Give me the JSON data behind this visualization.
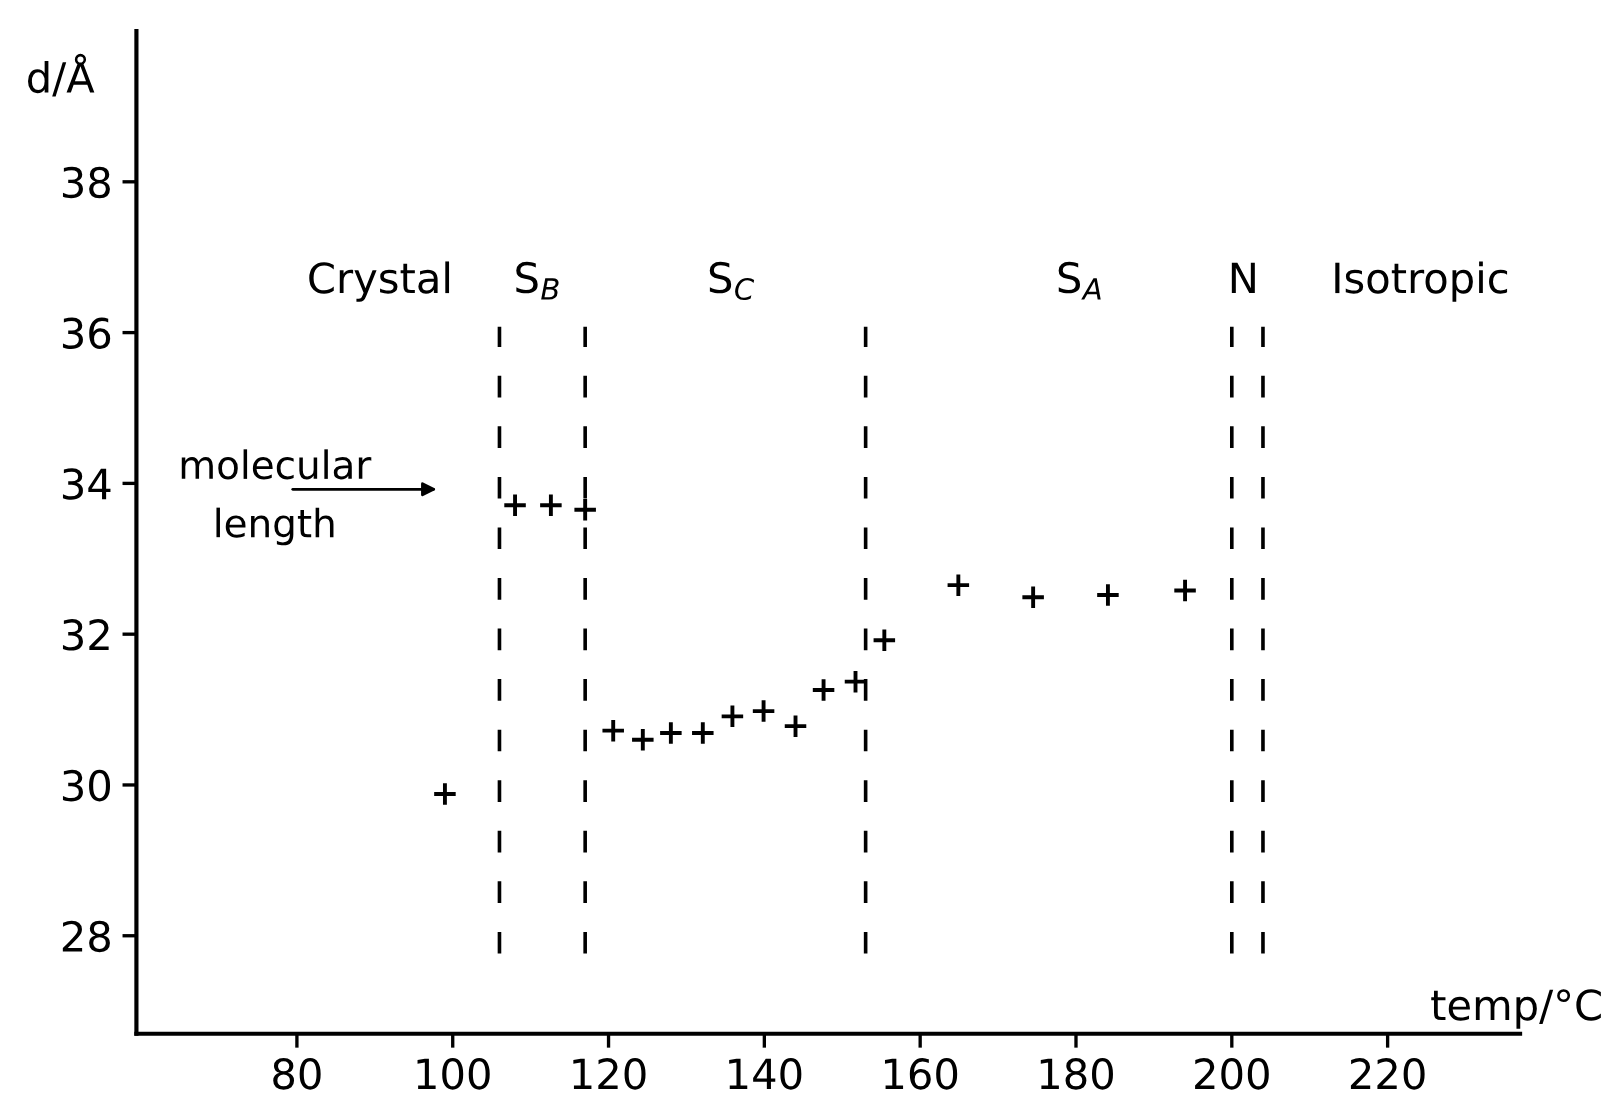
{
  "chart_data": {
    "type": "scatter",
    "xlabel": "temp/°C",
    "ylabel": "d/Å",
    "x": [
      99,
      108,
      112.6,
      117,
      120.6,
      124.4,
      128.0,
      132.1,
      135.9,
      139.9,
      144.0,
      147.6,
      151.7,
      155.4,
      164.9,
      174.5,
      184.1,
      194.0
    ],
    "series": [
      {
        "color": "#000000",
        "values": [
          29.88,
          33.71,
          33.71,
          33.65,
          30.72,
          30.6,
          30.69,
          30.69,
          30.91,
          30.98,
          30.78,
          31.26,
          31.37,
          31.92,
          32.65,
          32.49,
          32.52,
          32.58
        ]
      }
    ],
    "marker": "cross",
    "xlim": [
      59.4,
      237
    ],
    "ylim": [
      26.7,
      40
    ],
    "xticks": [
      80,
      100,
      120,
      140,
      160,
      180,
      200,
      220
    ],
    "yticks": [
      28,
      30,
      32,
      34,
      36,
      38
    ],
    "grid": false,
    "legend": false,
    "ref_lines": [
      {
        "axis": "x",
        "value": 106,
        "line_style": "dashed",
        "color": "#000000"
      },
      {
        "axis": "x",
        "value": 117,
        "line_style": "dashed",
        "color": "#000000"
      },
      {
        "axis": "x",
        "value": 153,
        "line_style": "dashed",
        "color": "#000000"
      },
      {
        "axis": "x",
        "value": 200,
        "line_style": "dashed",
        "color": "#000000"
      },
      {
        "axis": "x",
        "value": 204,
        "line_style": "dashed",
        "color": "#000000"
      }
    ],
    "annotations": [
      "Crystal",
      "S$_{B}$",
      "S$_{C}$",
      "S$_{A}$",
      "N",
      "Isotropic",
      "molecular\nlength"
    ]
  }
}
